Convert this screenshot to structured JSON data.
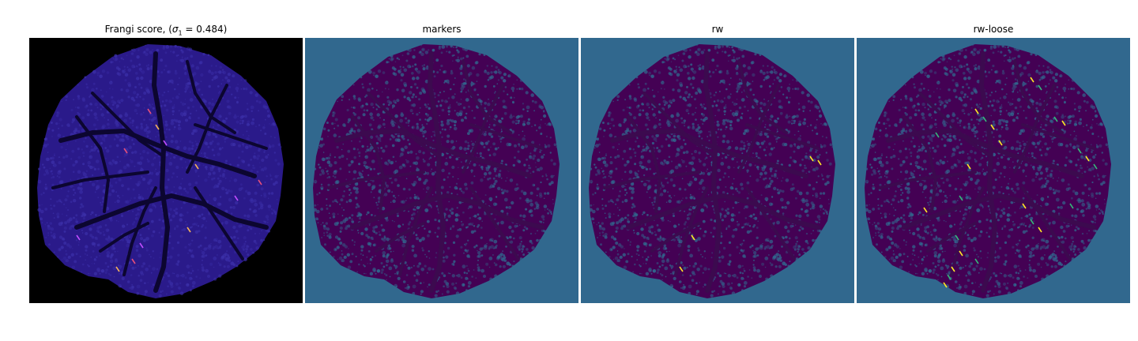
{
  "figure": {
    "panels": [
      {
        "id": "frangi",
        "title_prefix": "Frangi score, (",
        "title_symbol": "σ",
        "title_subscript": "1",
        "title_suffix": " = 0.484)",
        "background_color": "#000000",
        "shape_color": "#2a1a8a",
        "vessel_color": "#0c0630",
        "highlight_colors": [
          "#e64e7a",
          "#f4b25b",
          "#c04dff"
        ]
      },
      {
        "id": "markers",
        "title": "markers",
        "background_color": "#31688e",
        "shape_color": "#440154",
        "vessel_color": "#3c0a4f",
        "speckle_color": "#31688e"
      },
      {
        "id": "rw",
        "title": "rw",
        "background_color": "#31688e",
        "shape_color": "#440154",
        "vessel_color": "#3c0a4f",
        "speckle_color": "#31688e",
        "highlight_colors": [
          "#fde725"
        ]
      },
      {
        "id": "rw-loose",
        "title": "rw-loose",
        "background_color": "#31688e",
        "shape_color": "#440154",
        "vessel_color": "#3c0a4f",
        "speckle_color": "#31688e",
        "highlight_colors": [
          "#fde725",
          "#35b779"
        ]
      }
    ]
  }
}
